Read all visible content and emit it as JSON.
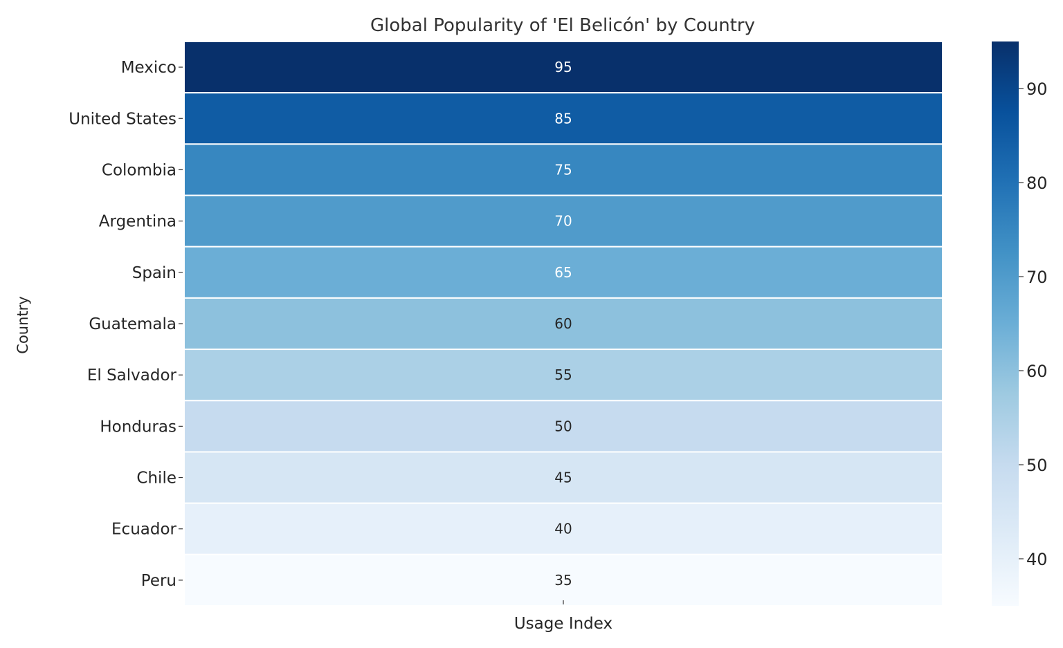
{
  "chart_data": {
    "type": "heatmap",
    "title": "Global Popularity of 'El Belicón' by Country",
    "xlabel": "",
    "ylabel": "Country",
    "columns": [
      "Usage Index"
    ],
    "rows": [
      "Mexico",
      "United States",
      "Colombia",
      "Argentina",
      "Spain",
      "Guatemala",
      "El Salvador",
      "Honduras",
      "Chile",
      "Ecuador",
      "Peru"
    ],
    "values": [
      95,
      85,
      75,
      70,
      65,
      60,
      55,
      50,
      45,
      40,
      35
    ],
    "colormap": "Blues",
    "colorbar": {
      "range": [
        35,
        95
      ],
      "ticks": [
        40,
        50,
        60,
        70,
        80,
        90
      ],
      "tick_labels": [
        "40",
        "50",
        "60",
        "70",
        "80",
        "90"
      ]
    },
    "annotations": [
      "95",
      "85",
      "75",
      "70",
      "65",
      "60",
      "55",
      "50",
      "45",
      "40",
      "35"
    ],
    "colors": {
      "high": "#08306b",
      "low": "#f7fbff",
      "text": "#262626",
      "cell_border": "#ffffff"
    }
  }
}
